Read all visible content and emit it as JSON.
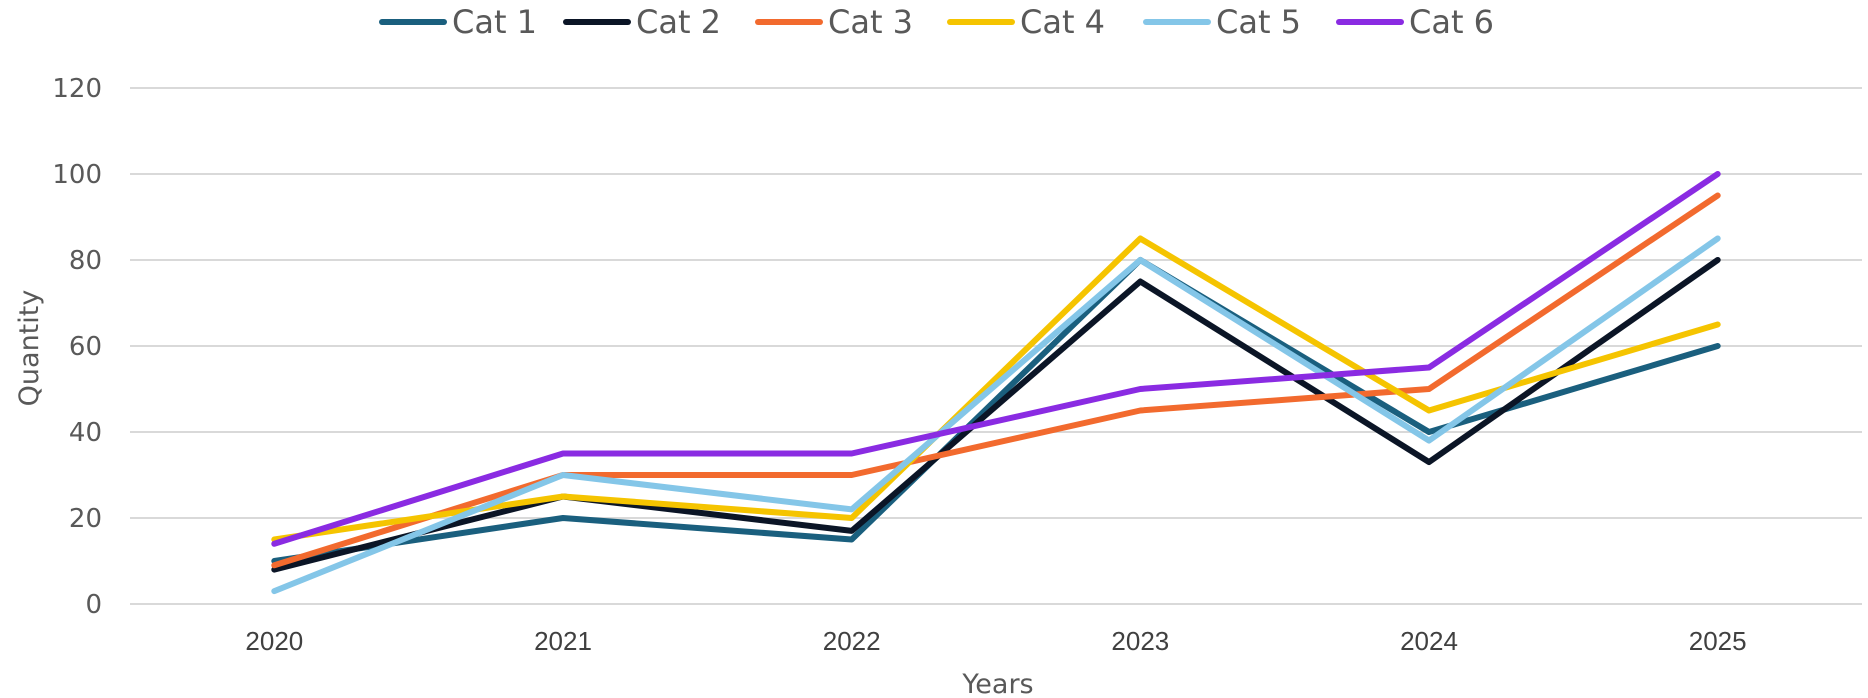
{
  "chart_data": {
    "type": "line",
    "title": "",
    "xlabel": "Years",
    "ylabel": "Quantity",
    "ylim": [
      0,
      120
    ],
    "yticks": [
      0,
      20,
      40,
      60,
      80,
      100,
      120
    ],
    "categories": [
      "2020",
      "2021",
      "2022",
      "2023",
      "2024",
      "2025"
    ],
    "grid": true,
    "legend_position": "top",
    "series": [
      {
        "name": "Cat 1",
        "color": "#1a5f7e",
        "values": [
          10,
          20,
          15,
          80,
          40,
          60
        ]
      },
      {
        "name": "Cat 2",
        "color": "#0b1526",
        "values": [
          8,
          25,
          17,
          75,
          33,
          80
        ]
      },
      {
        "name": "Cat 3",
        "color": "#f26a2e",
        "values": [
          9,
          30,
          30,
          45,
          50,
          95
        ]
      },
      {
        "name": "Cat 4",
        "color": "#f5c400",
        "values": [
          15,
          25,
          20,
          85,
          45,
          65
        ]
      },
      {
        "name": "Cat 5",
        "color": "#84c6e8",
        "values": [
          3,
          30,
          22,
          80,
          38,
          85
        ]
      },
      {
        "name": "Cat 6",
        "color": "#8a2be2",
        "values": [
          14,
          35,
          35,
          50,
          55,
          100
        ]
      }
    ]
  }
}
